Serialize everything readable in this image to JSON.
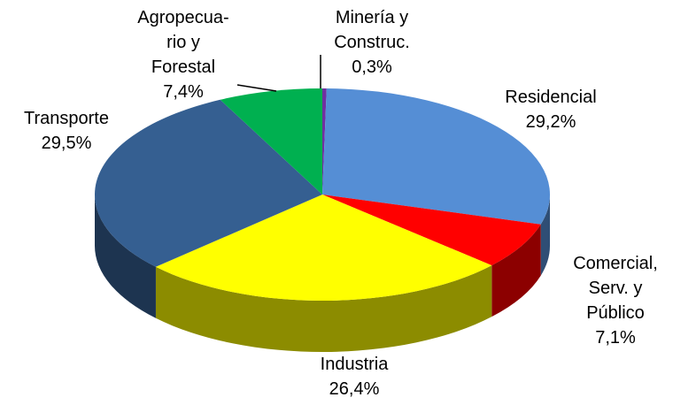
{
  "chart_data": {
    "type": "pie",
    "categories": [
      "Minería y\nConstruc.",
      "Residencial",
      "Comercial,\nServ. y\nPúblico",
      "Industria",
      "Transporte",
      "Agropecua-\nrio y\nForestal"
    ],
    "values": [
      0.3,
      29.2,
      7.1,
      26.4,
      29.5,
      7.4
    ],
    "value_labels": [
      "0,3%",
      "29,2%",
      "7,1%",
      "26,4%",
      "29,5%",
      "7,4%"
    ],
    "colors": [
      "#7030a0",
      "#558ed5",
      "#ff0000",
      "#ffff00",
      "#355f91",
      "#00b050"
    ]
  }
}
